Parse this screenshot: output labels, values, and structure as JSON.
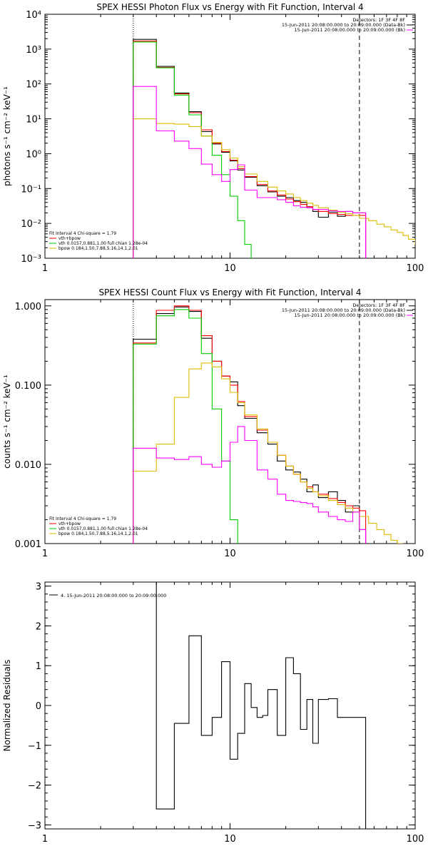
{
  "colors": {
    "data": "#000000",
    "model": "#ff0000",
    "vth": "#00cc00",
    "bpow": "#ddbb00",
    "background": "#ff00ff"
  },
  "chart_data": [
    {
      "type": "line",
      "title": "SPEX HESSI Photon Flux vs Energy with Fit Function, Interval 4",
      "ylabel": "photons s⁻¹ cm⁻² keV⁻¹",
      "xlabel": "",
      "xscale": "log",
      "yscale": "log",
      "xlim": [
        1,
        100
      ],
      "ylim": [
        0.001,
        10000
      ],
      "xticks": [
        1,
        10,
        100
      ],
      "xticklabels": [
        "1",
        "10",
        "100"
      ],
      "yticks": [
        0.001,
        0.01,
        0.1,
        1,
        10,
        100,
        1000,
        10000
      ],
      "yticklabels": [
        "10⁻³",
        "10⁻²",
        "10⁻¹",
        "10⁰",
        "10¹",
        "10²",
        "10³",
        "10⁴"
      ],
      "markers": {
        "left": 3,
        "right": 50
      },
      "legend_top": [
        "Detectors: 1F 3F 4F 8F",
        "15-Jun-2011 20:08:00.000 to 20:09:00.000 (Data-Bk)",
        "15-Jun-2011 20:08:00.000 to 20:09:00.000 (Bk)"
      ],
      "legend_bottom": [
        "Fit Interval 4   Chi-square = 1.79",
        "vth+bpow",
        "vth 0.0157,0.881,1.00  full chian 1.28e-04",
        "bpow 0.184,1.50,7.88,5.16,14.1,2.01"
      ],
      "series": [
        {
          "name": "data",
          "color": "#000000",
          "x": [
            3,
            4,
            5,
            6,
            7,
            8,
            9,
            10,
            11,
            12,
            14,
            16,
            18,
            20,
            22,
            24,
            26,
            28,
            30,
            34,
            38,
            42,
            46,
            50
          ],
          "y": [
            1900,
            320,
            55,
            16,
            4.3,
            1.9,
            1.1,
            0.62,
            0.34,
            0.21,
            0.12,
            0.08,
            0.06,
            0.055,
            0.045,
            0.04,
            0.03,
            0.022,
            0.015,
            0.021,
            0.016,
            0.022,
            0.02,
            0.02
          ]
        },
        {
          "name": "vth+bpow",
          "color": "#ff0000",
          "x": [
            3,
            4,
            5,
            6,
            7,
            8,
            9,
            10,
            11,
            12,
            14,
            16,
            18,
            20,
            22,
            24,
            26,
            28,
            30,
            34,
            38,
            42,
            46,
            50
          ],
          "y": [
            1700,
            300,
            52,
            15,
            4.8,
            2.0,
            1.15,
            0.65,
            0.37,
            0.22,
            0.13,
            0.085,
            0.065,
            0.05,
            0.042,
            0.035,
            0.03,
            0.025,
            0.022,
            0.019,
            0.018,
            0.017,
            0.017,
            0.017
          ]
        },
        {
          "name": "vth",
          "color": "#00cc00",
          "x": [
            3,
            4,
            5,
            6,
            7,
            8,
            9,
            10,
            11,
            12
          ],
          "y": [
            1600,
            290,
            48,
            13,
            3.2,
            0.9,
            0.25,
            0.06,
            0.012,
            0.0025
          ]
        },
        {
          "name": "bpow",
          "color": "#ddbb00",
          "x": [
            3,
            4,
            5,
            6,
            7,
            8,
            9,
            10,
            11,
            12,
            14,
            16,
            18,
            20,
            22,
            24,
            26,
            28,
            30,
            34,
            38,
            42,
            46,
            50,
            56,
            62,
            68,
            74,
            80,
            86,
            92,
            100
          ],
          "y": [
            10,
            7.3,
            7,
            6,
            3.2,
            2.1,
            1.3,
            0.75,
            0.42,
            0.26,
            0.16,
            0.11,
            0.085,
            0.07,
            0.055,
            0.045,
            0.038,
            0.033,
            0.028,
            0.024,
            0.021,
            0.019,
            0.017,
            0.014,
            0.012,
            0.0095,
            0.008,
            0.0065,
            0.0055,
            0.0045,
            0.0035,
            0.0025
          ]
        },
        {
          "name": "background",
          "color": "#ff00ff",
          "x": [
            3,
            4,
            5,
            6,
            7,
            8,
            9,
            10,
            11,
            12,
            14,
            16,
            18,
            20,
            22,
            24,
            26,
            28,
            30,
            34,
            38,
            42,
            46,
            50
          ],
          "y": [
            85,
            4.5,
            2.3,
            1.4,
            0.5,
            0.25,
            0.16,
            0.35,
            0.48,
            0.09,
            0.055,
            0.055,
            0.048,
            0.04,
            0.032,
            0.029,
            0.028,
            0.025,
            0.025,
            0.023,
            0.022,
            0.022,
            0.02,
            0.02
          ]
        }
      ]
    },
    {
      "type": "line",
      "title": "SPEX HESSI Count Flux vs Energy with Fit Function, Interval 4",
      "ylabel": "counts s⁻¹ cm⁻² keV⁻¹",
      "xlabel": "",
      "xscale": "log",
      "yscale": "log",
      "xlim": [
        1,
        100
      ],
      "ylim": [
        0.001,
        1.2
      ],
      "xticks": [
        1,
        10,
        100
      ],
      "xticklabels": [
        "1",
        "10",
        "100"
      ],
      "yticks": [
        0.001,
        0.01,
        0.1,
        1
      ],
      "yticklabels": [
        "0.001",
        "0.010",
        "0.100",
        "1.000"
      ],
      "markers": {
        "left": 3,
        "right": 50
      },
      "legend_top": [
        "Detectors: 1F 3F 4F 8F",
        "15-Jun-2011 20:08:00.000 to 20:09:00.000 (Data-Bk)",
        "15-Jun-2011 20:08:00.000 to 20:09:00.000 (Bk)"
      ],
      "legend_bottom": [
        "Fit Interval 4   Chi-square = 1.79",
        "vth+bpow",
        "vth 0.0157,0.881,1.00  full chian 1.28e-04",
        "bpow 0.184,1.50,7.88,5.16,14.1,2.01"
      ],
      "series": [
        {
          "name": "data",
          "color": "#000000",
          "x": [
            3,
            4,
            5,
            6,
            7,
            8,
            9,
            10,
            11,
            12,
            14,
            16,
            18,
            20,
            22,
            24,
            26,
            28,
            30,
            34,
            38,
            42,
            46,
            50
          ],
          "y": [
            0.38,
            0.8,
            0.97,
            0.85,
            0.39,
            0.2,
            0.13,
            0.11,
            0.055,
            0.038,
            0.025,
            0.018,
            0.011,
            0.0085,
            0.008,
            0.0065,
            0.0045,
            0.0055,
            0.0038,
            0.0045,
            0.0035,
            0.0025,
            0.003,
            0.0015
          ]
        },
        {
          "name": "vth+bpow",
          "color": "#ff0000",
          "x": [
            3,
            4,
            5,
            6,
            7,
            8,
            9,
            10,
            11,
            12,
            14,
            16,
            18,
            20,
            22,
            24,
            26,
            28,
            30,
            34,
            38,
            42,
            46,
            50
          ],
          "y": [
            0.34,
            0.88,
            1.0,
            0.88,
            0.42,
            0.2,
            0.13,
            0.1,
            0.062,
            0.04,
            0.027,
            0.019,
            0.013,
            0.0095,
            0.0075,
            0.006,
            0.0052,
            0.0045,
            0.0042,
            0.0037,
            0.0033,
            0.003,
            0.0028,
            0.0026
          ]
        },
        {
          "name": "vth",
          "color": "#00cc00",
          "x": [
            3,
            4,
            5,
            6,
            7,
            8,
            9,
            10,
            11
          ],
          "y": [
            0.33,
            0.75,
            0.9,
            0.7,
            0.25,
            0.05,
            0.011,
            0.002,
            0.0008
          ]
        },
        {
          "name": "bpow",
          "color": "#ddbb00",
          "x": [
            3,
            4,
            5,
            6,
            7,
            8,
            9,
            10,
            11,
            12,
            14,
            16,
            18,
            20,
            22,
            24,
            26,
            28,
            30,
            34,
            38,
            42,
            46,
            50,
            56,
            62,
            68,
            74,
            80
          ],
          "y": [
            0.0082,
            0.018,
            0.07,
            0.16,
            0.19,
            0.17,
            0.12,
            0.081,
            0.06,
            0.042,
            0.028,
            0.019,
            0.013,
            0.0095,
            0.0075,
            0.006,
            0.005,
            0.0045,
            0.004,
            0.0035,
            0.0031,
            0.0028,
            0.0025,
            0.0022,
            0.0018,
            0.0015,
            0.0013,
            0.0011,
            0.001
          ]
        },
        {
          "name": "background",
          "color": "#ff00ff",
          "x": [
            3,
            4,
            5,
            6,
            7,
            8,
            9,
            10,
            11,
            12,
            14,
            16,
            18,
            20,
            22,
            24,
            26,
            28,
            30,
            34,
            38,
            42,
            46,
            50
          ],
          "y": [
            0.016,
            0.012,
            0.0115,
            0.0125,
            0.01,
            0.0092,
            0.011,
            0.019,
            0.03,
            0.02,
            0.0085,
            0.0065,
            0.0042,
            0.0035,
            0.0034,
            0.0033,
            0.0032,
            0.0029,
            0.0025,
            0.0022,
            0.002,
            0.0019,
            0.0025,
            0.0015
          ]
        }
      ]
    },
    {
      "type": "line",
      "title": "",
      "ylabel": "Normalized Residuals",
      "xlabel": "",
      "xscale": "log",
      "yscale": "linear",
      "xlim": [
        1,
        100
      ],
      "ylim": [
        -3.1,
        3.1
      ],
      "xticks": [
        1,
        10,
        100
      ],
      "xticklabels": [
        "1",
        "10",
        "100"
      ],
      "yticks": [
        -3,
        -2,
        -1,
        0,
        1,
        2,
        3
      ],
      "yticklabels": [
        "−3",
        "−2",
        "−1",
        "0",
        "1",
        "2",
        "3"
      ],
      "legend_top": [
        "4. 15-Jun-2011 20:08:00.000 to 20:09:00.000"
      ],
      "series": [
        {
          "name": "residuals",
          "color": "#000000",
          "x": [
            3,
            4,
            5,
            6,
            7,
            8,
            9,
            10,
            11,
            12,
            13,
            14,
            15,
            16,
            18,
            20,
            22,
            24,
            26,
            28,
            30,
            34,
            38,
            42,
            46,
            50
          ],
          "y": [
            3.1,
            -2.6,
            -0.45,
            1.75,
            -0.75,
            -0.3,
            1.1,
            -1.35,
            -0.7,
            0.55,
            -0.05,
            -0.3,
            -0.25,
            0.4,
            -0.75,
            1.2,
            0.8,
            -0.6,
            0.15,
            -0.95,
            0.15,
            0.17,
            -0.3,
            -0.3,
            -0.3,
            -0.3
          ]
        }
      ]
    }
  ]
}
